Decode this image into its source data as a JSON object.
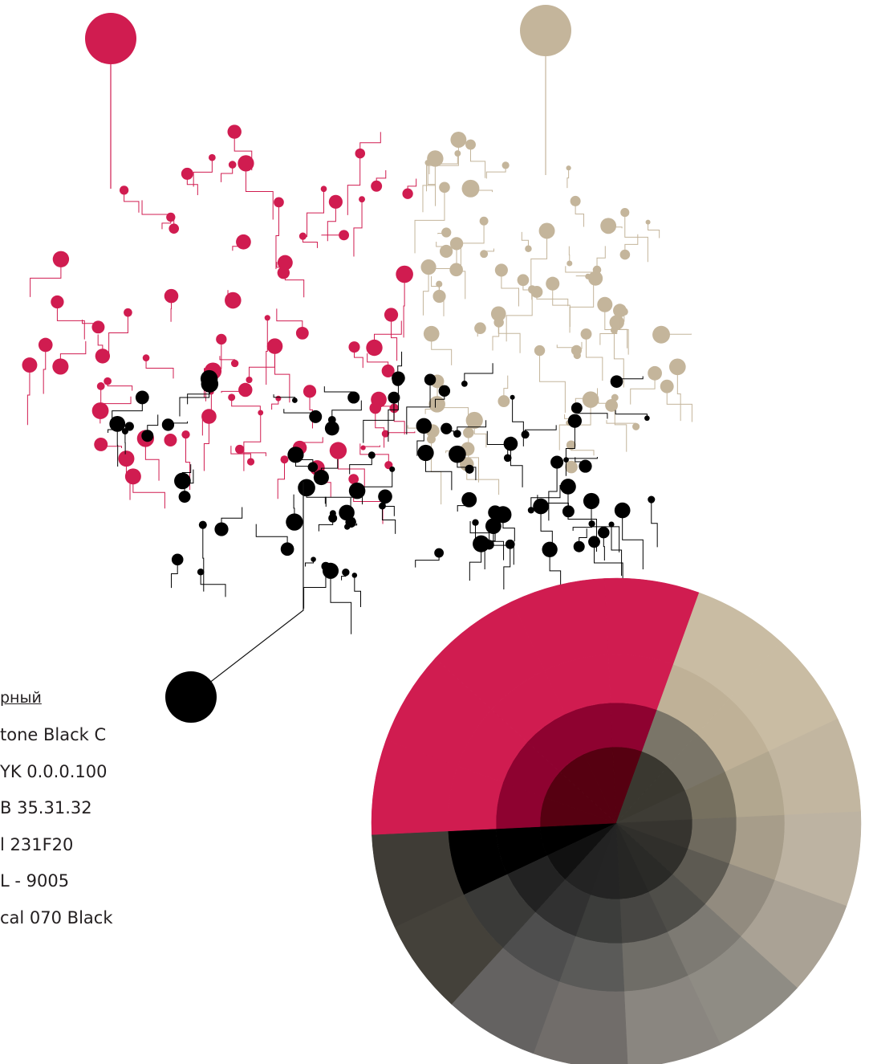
{
  "color_card": {
    "title": "рный",
    "specs": [
      "tone Black C",
      "YK 0.0.0.100",
      "B  35.31.32",
      "l  231F20",
      "L - 9005",
      "cal 070 Black"
    ]
  }
}
